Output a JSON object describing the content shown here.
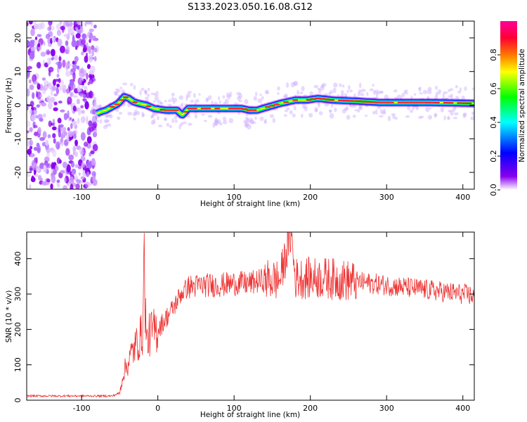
{
  "title": "S133.2023.050.16.08.G12",
  "colors": {
    "snr_line": "#ee3333",
    "background": "#ffffff",
    "colormap": [
      "#ffffff",
      "#8800ee",
      "#0000ff",
      "#00ffff",
      "#00ff00",
      "#ffff00",
      "#ff7700",
      "#ff0033",
      "#ff0099"
    ]
  },
  "chart_data": [
    {
      "type": "heatmap",
      "title": "S133.2023.050.16.08.G12",
      "xlabel": "Height of straight line (km)",
      "ylabel": "Frequency (Hz)",
      "xlim": [
        -172,
        415
      ],
      "ylim": [
        -25,
        25
      ],
      "x_ticks": [
        -100,
        0,
        100,
        200,
        300,
        400
      ],
      "y_ticks": [
        -20,
        -10,
        0,
        10,
        20
      ],
      "grid": false,
      "colorbar": {
        "label": "Normalized spectral amplitude",
        "range": [
          0.0,
          1.0
        ],
        "ticks": [
          0.0,
          0.2,
          0.4,
          0.6,
          0.8
        ]
      },
      "noise_region_x": [
        -172,
        -80
      ],
      "ridge": {
        "x": [
          -80,
          -75,
          -68,
          -60,
          -52,
          -48,
          -44,
          -38,
          -32,
          -25,
          -15,
          -5,
          10,
          25,
          32,
          40,
          55,
          70,
          90,
          110,
          120,
          130,
          145,
          160,
          170,
          180,
          195,
          210,
          230,
          260,
          290,
          320,
          350,
          380,
          415
        ],
        "y": [
          -2.5,
          -2.0,
          -1.5,
          -0.5,
          0.5,
          1.5,
          2.5,
          2.0,
          1.0,
          0.5,
          0.0,
          -1.0,
          -1.5,
          -1.5,
          -3.0,
          -1.0,
          -1.0,
          -1.0,
          -1.0,
          -1.0,
          -1.5,
          -1.5,
          -0.5,
          0.5,
          1.0,
          1.5,
          1.5,
          2.0,
          1.5,
          1.2,
          0.8,
          0.8,
          0.8,
          0.7,
          0.5
        ]
      }
    },
    {
      "type": "line",
      "xlabel": "Height of straight line (km)",
      "ylabel": "SNR (10 * v/v)",
      "xlim": [
        -172,
        415
      ],
      "ylim": [
        0,
        475
      ],
      "x_ticks": [
        -100,
        0,
        100,
        200,
        300,
        400
      ],
      "y_ticks": [
        0,
        100,
        200,
        300,
        400
      ],
      "grid": false,
      "series": [
        {
          "x": [
            -172,
            -100,
            -60,
            -50,
            -45,
            -40,
            -35,
            -30,
            -25,
            -20,
            -18,
            -15,
            -10,
            0,
            10,
            20,
            30,
            40,
            60,
            80,
            100,
            120,
            140,
            160,
            175,
            180,
            200,
            220,
            240,
            260,
            280,
            300,
            320,
            340,
            360,
            380,
            400,
            415
          ],
          "values": [
            12,
            12,
            12,
            20,
            80,
            100,
            130,
            150,
            170,
            190,
            400,
            160,
            190,
            200,
            230,
            260,
            300,
            320,
            325,
            325,
            330,
            330,
            340,
            340,
            475,
            345,
            345,
            345,
            340,
            335,
            330,
            325,
            320,
            315,
            310,
            305,
            300,
            295
          ]
        }
      ]
    }
  ]
}
